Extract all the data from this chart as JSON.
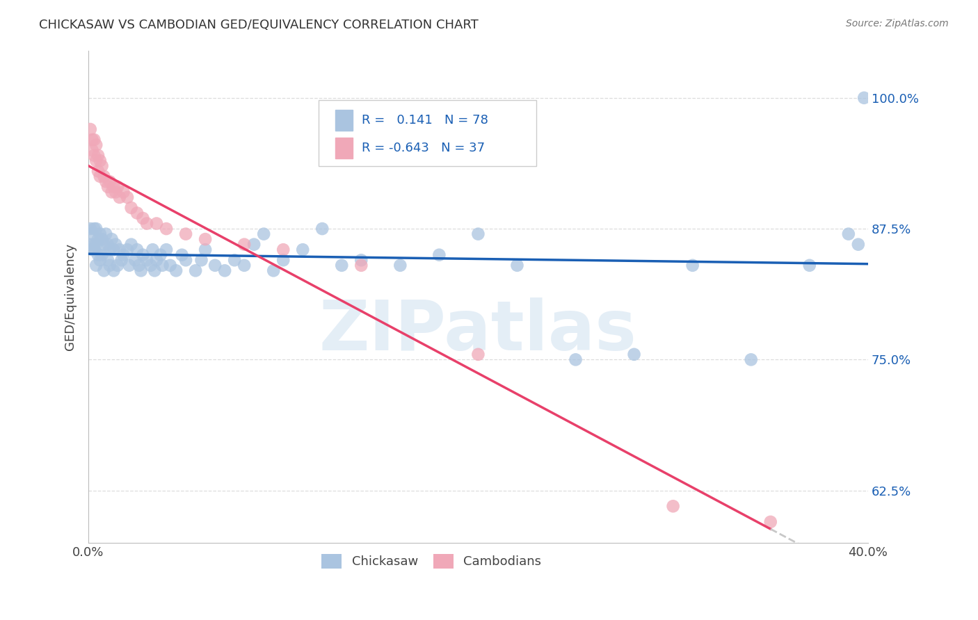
{
  "title": "CHICKASAW VS CAMBODIAN GED/EQUIVALENCY CORRELATION CHART",
  "source": "Source: ZipAtlas.com",
  "ylabel": "GED/Equivalency",
  "ytick_labels": [
    "62.5%",
    "75.0%",
    "87.5%",
    "100.0%"
  ],
  "ytick_vals": [
    0.625,
    0.75,
    0.875,
    1.0
  ],
  "xmin": 0.0,
  "xmax": 0.4,
  "ymin": 0.575,
  "ymax": 1.045,
  "chickasaw_R": 0.141,
  "chickasaw_N": 78,
  "cambodian_R": -0.643,
  "cambodian_N": 37,
  "chickasaw_color": "#aac4e0",
  "cambodian_color": "#f0a8b8",
  "chickasaw_line_color": "#1a5fb4",
  "cambodian_line_color": "#e8406a",
  "trend_ext_color": "#c8c8c8",
  "chickasaw_x": [
    0.001,
    0.001,
    0.002,
    0.002,
    0.003,
    0.003,
    0.003,
    0.004,
    0.004,
    0.004,
    0.005,
    0.005,
    0.006,
    0.006,
    0.007,
    0.007,
    0.008,
    0.008,
    0.009,
    0.01,
    0.01,
    0.011,
    0.011,
    0.012,
    0.013,
    0.013,
    0.014,
    0.015,
    0.016,
    0.017,
    0.018,
    0.02,
    0.021,
    0.022,
    0.024,
    0.025,
    0.026,
    0.027,
    0.028,
    0.03,
    0.032,
    0.033,
    0.034,
    0.035,
    0.037,
    0.038,
    0.04,
    0.042,
    0.045,
    0.048,
    0.05,
    0.055,
    0.058,
    0.06,
    0.065,
    0.07,
    0.075,
    0.08,
    0.085,
    0.09,
    0.095,
    0.1,
    0.11,
    0.12,
    0.13,
    0.14,
    0.16,
    0.18,
    0.2,
    0.22,
    0.25,
    0.28,
    0.31,
    0.34,
    0.37,
    0.39,
    0.395,
    0.398
  ],
  "chickasaw_y": [
    0.875,
    0.86,
    0.855,
    0.87,
    0.86,
    0.875,
    0.855,
    0.84,
    0.86,
    0.875,
    0.85,
    0.865,
    0.845,
    0.87,
    0.85,
    0.865,
    0.835,
    0.86,
    0.87,
    0.845,
    0.86,
    0.84,
    0.855,
    0.865,
    0.835,
    0.855,
    0.86,
    0.84,
    0.855,
    0.845,
    0.85,
    0.855,
    0.84,
    0.86,
    0.845,
    0.855,
    0.84,
    0.835,
    0.85,
    0.845,
    0.84,
    0.855,
    0.835,
    0.845,
    0.85,
    0.84,
    0.855,
    0.84,
    0.835,
    0.85,
    0.845,
    0.835,
    0.845,
    0.855,
    0.84,
    0.835,
    0.845,
    0.84,
    0.86,
    0.87,
    0.835,
    0.845,
    0.855,
    0.875,
    0.84,
    0.845,
    0.84,
    0.85,
    0.87,
    0.84,
    0.75,
    0.755,
    0.84,
    0.75,
    0.84,
    0.87,
    0.86,
    1.0
  ],
  "cambodian_x": [
    0.001,
    0.002,
    0.002,
    0.003,
    0.003,
    0.004,
    0.004,
    0.005,
    0.005,
    0.006,
    0.006,
    0.007,
    0.008,
    0.009,
    0.01,
    0.011,
    0.012,
    0.013,
    0.014,
    0.015,
    0.016,
    0.018,
    0.02,
    0.022,
    0.025,
    0.028,
    0.03,
    0.035,
    0.04,
    0.05,
    0.06,
    0.08,
    0.1,
    0.14,
    0.2,
    0.3,
    0.35
  ],
  "cambodian_y": [
    0.97,
    0.96,
    0.95,
    0.96,
    0.945,
    0.955,
    0.94,
    0.945,
    0.93,
    0.94,
    0.925,
    0.935,
    0.925,
    0.92,
    0.915,
    0.92,
    0.91,
    0.915,
    0.91,
    0.915,
    0.905,
    0.91,
    0.905,
    0.895,
    0.89,
    0.885,
    0.88,
    0.88,
    0.875,
    0.87,
    0.865,
    0.86,
    0.855,
    0.84,
    0.755,
    0.61,
    0.595
  ],
  "background_color": "#ffffff",
  "grid_color": "#dddddd"
}
